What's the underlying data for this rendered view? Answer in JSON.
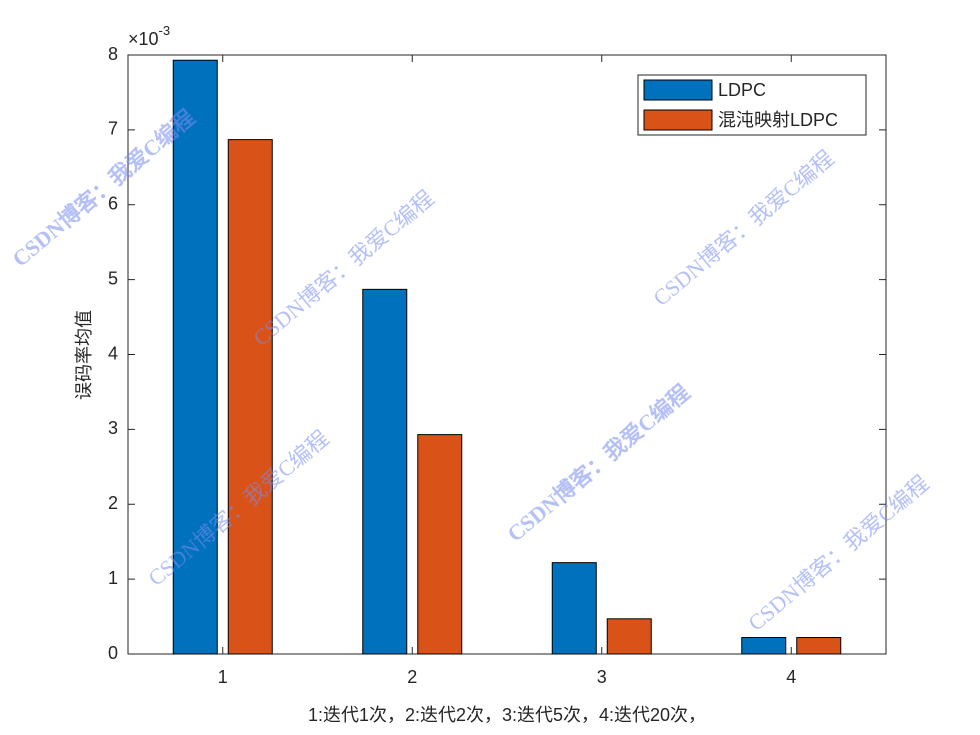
{
  "chart_data": {
    "type": "bar",
    "ylabel": "误码率均值",
    "xlabel": "1:迭代1次，2:迭代2次，3:迭代5次，4:迭代20次，",
    "y_multiplier": {
      "base": "×10",
      "exponent": "-3"
    },
    "categories": [
      "1",
      "2",
      "3",
      "4"
    ],
    "series": [
      {
        "name": "LDPC",
        "color": "#0072bd",
        "values": [
          7.93,
          4.87,
          1.22,
          0.22
        ]
      },
      {
        "name": "混沌映射LDPC",
        "color": "#d95319",
        "values": [
          6.87,
          2.93,
          0.47,
          0.22
        ]
      }
    ],
    "ylim": [
      0,
      8
    ],
    "yticks": [
      0,
      1,
      2,
      3,
      4,
      5,
      6,
      7,
      8
    ],
    "grid": false,
    "legend": "northeast",
    "watermark": "CSDN博客：我爱C编程"
  }
}
